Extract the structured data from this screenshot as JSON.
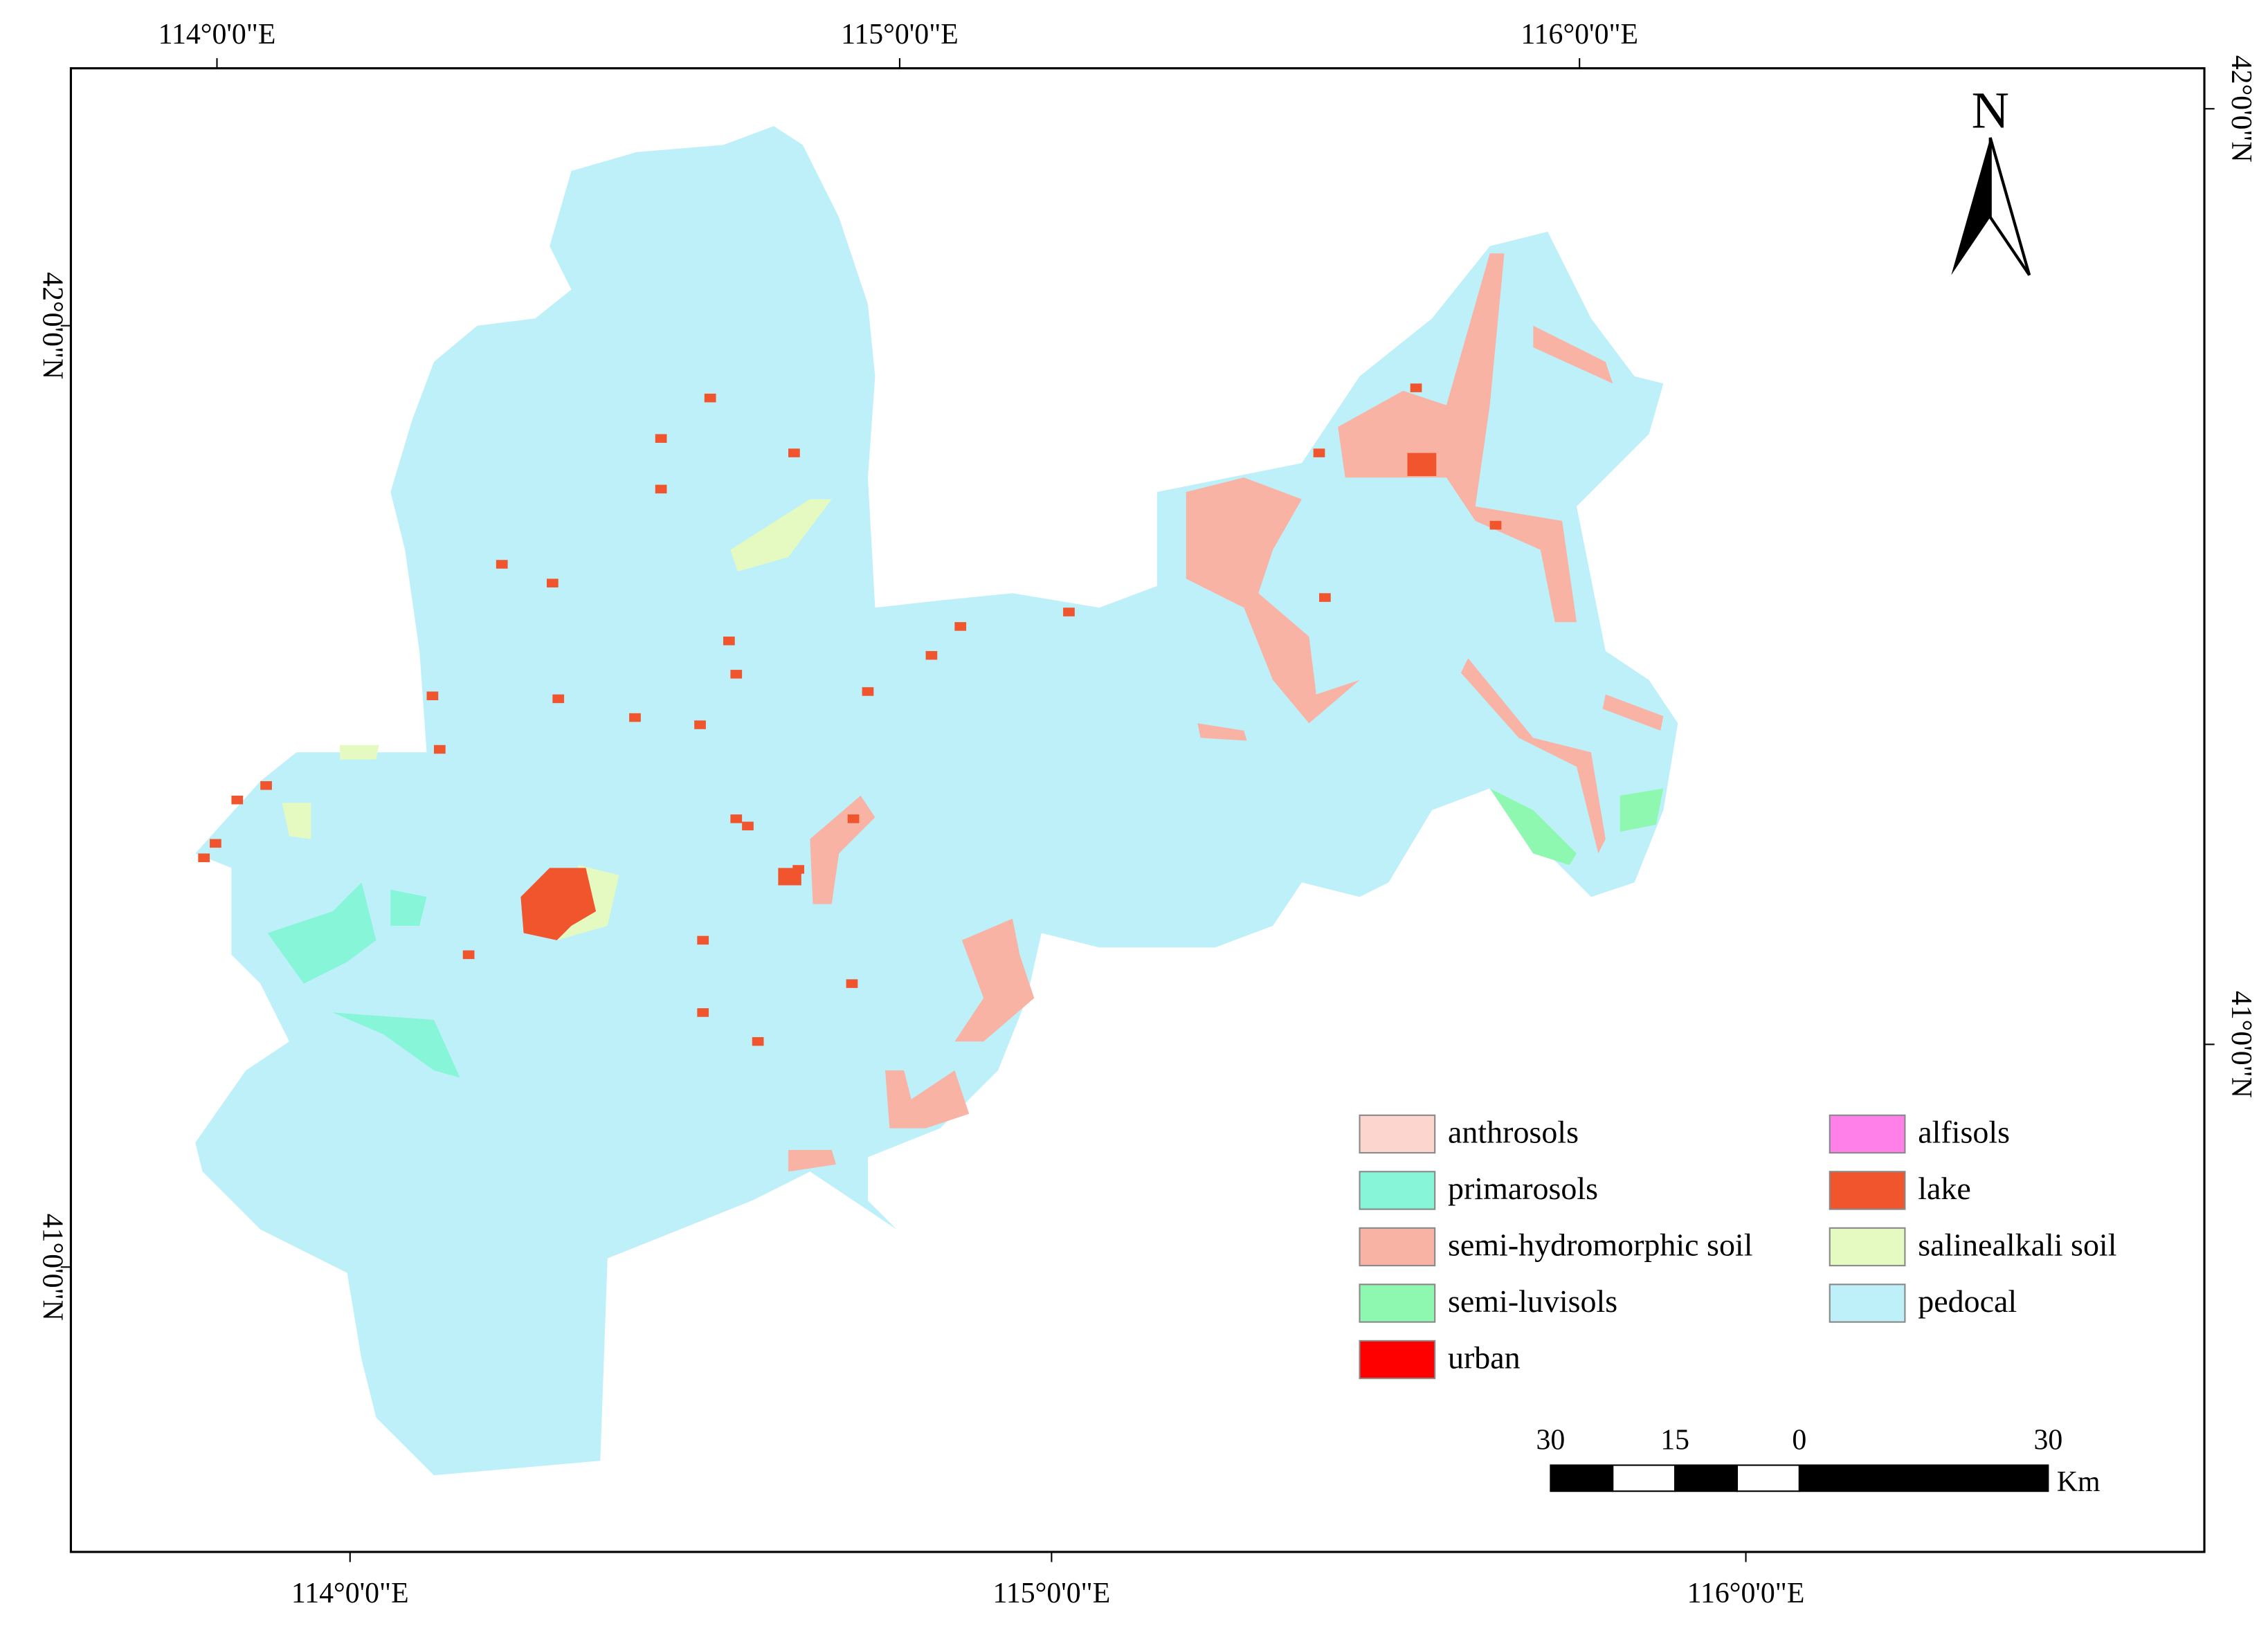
{
  "map": {
    "graticule": {
      "top": [
        "114°0'0\"E",
        "115°0'0\"E",
        "116°0'0\"E"
      ],
      "bottom": [
        "114°0'0\"E",
        "115°0'0\"E",
        "116°0'0\"E"
      ],
      "left": [
        "42°0'0\"N",
        "41°0'0\"N"
      ],
      "right": [
        "42°0'0\"N",
        "41°0'0\"N"
      ]
    },
    "north": "N",
    "legend": [
      {
        "label": "anthrosols",
        "color": "#fcd5ce"
      },
      {
        "label": "primarosols",
        "color": "#86f5d8"
      },
      {
        "label": "semi-hydromorphic soil",
        "color": "#f8b3a5"
      },
      {
        "label": "semi-luvisols",
        "color": "#8ff8b0"
      },
      {
        "label": "urban",
        "color": "#ff0000"
      },
      {
        "label": "alfisols",
        "color": "#ff80e8"
      },
      {
        "label": "lake",
        "color": "#f0552e"
      },
      {
        "label": "salinealkali soil",
        "color": "#e4fac0"
      },
      {
        "label": "pedocal",
        "color": "#bef0fa"
      }
    ],
    "scale_bar": {
      "labels": [
        30,
        15,
        0,
        30
      ],
      "unit": "Km"
    }
  }
}
